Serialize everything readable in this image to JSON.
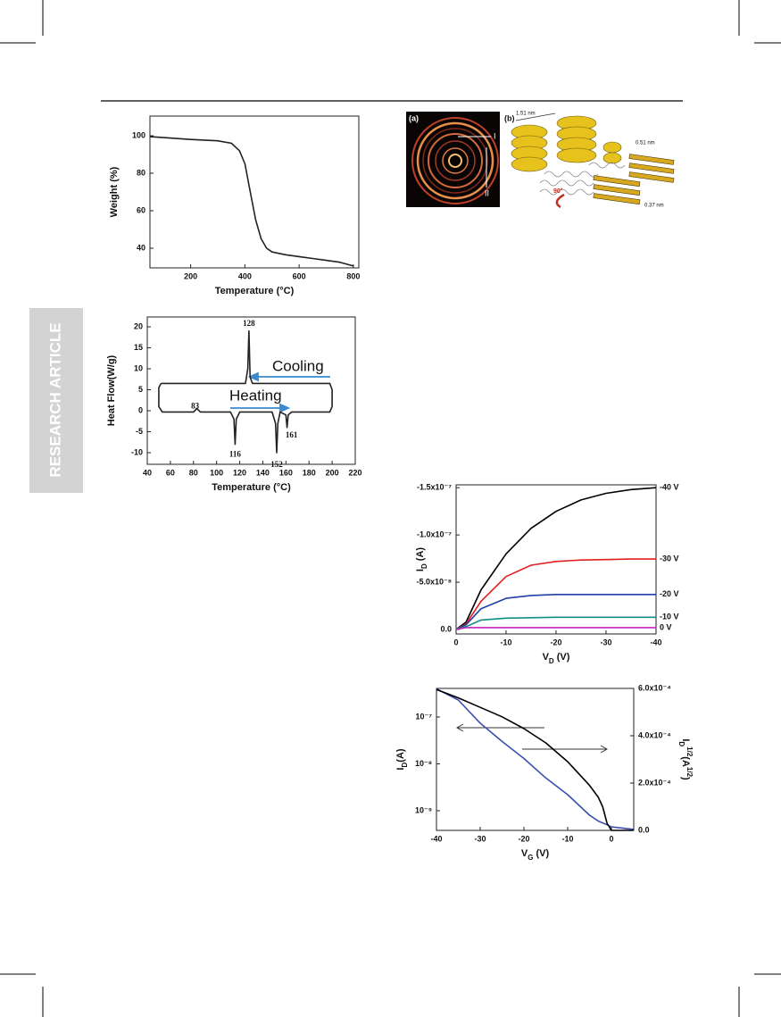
{
  "sidebar": "RESEARCH ARTICLE",
  "figure": {
    "panel_a": "(a)",
    "panel_b": "(b)",
    "ring_1": "I",
    "ring_2": "II",
    "spacing_1": "1.51 nm",
    "spacing_2": "0.51 nm",
    "spacing_3": "0.37 nm",
    "angle": "90°"
  },
  "chart_data": [
    {
      "type": "line",
      "x_label": [
        {
          "text": "Temperature (°C)"
        }
      ],
      "y_label": [
        {
          "text": "Weight (%)"
        }
      ],
      "xlim": [
        50,
        820
      ],
      "ylim": [
        29.5,
        110.5
      ],
      "xticks": [
        200,
        400,
        600,
        800
      ],
      "yticks": [
        40,
        60,
        80,
        100
      ],
      "x": [
        50,
        100,
        200,
        300,
        350,
        380,
        400,
        420,
        440,
        460,
        480,
        500,
        550,
        600,
        650,
        700,
        750,
        800
      ],
      "values": [
        99.5,
        99,
        98,
        97.3,
        96,
        92,
        85,
        70,
        55,
        45,
        40,
        38,
        36.5,
        35.5,
        34.5,
        33.5,
        32.5,
        30.5
      ],
      "color": "#222222"
    },
    {
      "type": "line",
      "x_label": [
        {
          "text": "Temperature (°C)"
        }
      ],
      "y_label": [
        {
          "text": "Heat Flow(W/g)"
        }
      ],
      "xlim": [
        40,
        220
      ],
      "ylim": [
        -12.77,
        22.34
      ],
      "xticks": [
        40,
        60,
        80,
        100,
        120,
        140,
        160,
        180,
        200,
        220
      ],
      "yticks": [
        -10,
        -5,
        0,
        5,
        10,
        15,
        20
      ],
      "x": [
        52,
        125,
        127,
        128,
        129,
        131,
        198,
        200,
        200,
        198,
        165,
        162,
        161,
        160,
        155,
        153,
        152,
        151,
        148,
        120,
        117,
        116,
        115,
        112,
        86,
        83,
        80,
        53,
        50,
        50,
        52
      ],
      "values": [
        6.5,
        6.5,
        10,
        19,
        8,
        6.5,
        6.5,
        5,
        1,
        -0.3,
        -0.3,
        -1,
        -4,
        -1,
        -0.3,
        -3,
        -10,
        -3,
        -0.3,
        -0.3,
        -2,
        -8,
        -2,
        -0.3,
        -0.3,
        0.5,
        -0.3,
        -0.3,
        1,
        5.5,
        6.5
      ],
      "color": "#222222",
      "annotations": [
        {
          "label": "128",
          "x": 128,
          "y": 19
        },
        {
          "label": "83",
          "x": 83,
          "y": 0.5
        },
        {
          "label": "116",
          "x": 116,
          "y": -8
        },
        {
          "label": "152",
          "x": 152,
          "y": -10
        },
        {
          "label": "161",
          "x": 161,
          "y": -4
        }
      ],
      "notes": [
        "Cooling",
        "Heating"
      ]
    },
    {
      "type": "line",
      "x_label": [
        {
          "text": "V"
        },
        {
          "text": "D",
          "shift": "sub"
        },
        {
          "text": " (V)"
        }
      ],
      "y_label": [
        {
          "text": "I"
        },
        {
          "text": "D",
          "shift": "sub"
        },
        {
          "text": " (A)"
        }
      ],
      "xlim": [
        0,
        -40
      ],
      "ylim": [
        4.7e-09,
        -1.53e-07
      ],
      "xticks": [
        0,
        -10,
        -20,
        -30,
        -40
      ],
      "yticks": [
        {
          "value": 0,
          "label": "0.0"
        },
        {
          "value": -5e-08,
          "label": "-5.0x10⁻⁸"
        },
        {
          "value": -1e-07,
          "label": "-1.0x10⁻⁷"
        },
        {
          "value": -1.5e-07,
          "label": "-1.5x10⁻⁷"
        }
      ],
      "x": [
        0,
        -2,
        -5,
        -10,
        -15,
        -20,
        -25,
        -30,
        -35,
        -40
      ],
      "series": [
        {
          "name": "-40 V",
          "color": "#000000",
          "values": [
            0,
            -8e-09,
            -4.2e-08,
            -8e-08,
            -1.07e-07,
            -1.25e-07,
            -1.37e-07,
            -1.44e-07,
            -1.48e-07,
            -1.5e-07
          ]
        },
        {
          "name": "-30 V",
          "color": "#e02020",
          "values": [
            0,
            -6e-09,
            -3e-08,
            -5.6e-08,
            -6.8e-08,
            -7.2e-08,
            -7.35e-08,
            -7.4e-08,
            -7.45e-08,
            -7.45e-08
          ]
        },
        {
          "name": "-20 V",
          "color": "#2040a8",
          "values": [
            0,
            -5e-09,
            -2.2e-08,
            -3.3e-08,
            -3.6e-08,
            -3.7e-08,
            -3.7e-08,
            -3.7e-08,
            -3.7e-08,
            -3.7e-08
          ]
        },
        {
          "name": "-10 V",
          "color": "#109080",
          "values": [
            0,
            -3e-09,
            -1e-08,
            -1.2e-08,
            -1.25e-08,
            -1.3e-08,
            -1.3e-08,
            -1.3e-08,
            -1.3e-08,
            -1.3e-08
          ]
        },
        {
          "name": "0 V",
          "color": "#c020c0",
          "values": [
            0,
            -2e-09,
            -2e-09,
            -2e-09,
            -2e-09,
            -2e-09,
            -2e-09,
            -2e-09,
            -2e-09,
            -2e-09
          ]
        }
      ]
    },
    {
      "type": "line",
      "ylog": true,
      "x_label": [
        {
          "text": "V"
        },
        {
          "text": "G",
          "shift": "sub"
        },
        {
          "text": " (V)"
        }
      ],
      "y_label": [
        {
          "text": "I"
        },
        {
          "text": "D",
          "shift": "sub"
        },
        {
          "text": "(A)"
        }
      ],
      "y2_label": [
        {
          "text": "I"
        },
        {
          "text": "D",
          "shift": "sub"
        },
        {
          "text": "1/2",
          "shift": "sup"
        },
        {
          "text": "(A"
        },
        {
          "text": "1/2",
          "shift": "sup"
        },
        {
          "text": ")"
        }
      ],
      "xlim": [
        -40,
        5.1
      ],
      "ylim": [
        3.8e-10,
        4.07e-07
      ],
      "y2lim": [
        0,
        0.0006
      ],
      "xticks": [
        -40,
        -30,
        -20,
        -10,
        0
      ],
      "yticks": [
        {
          "value": 1e-07,
          "label": "10⁻⁷"
        },
        {
          "value": 1e-08,
          "label": "10⁻⁸"
        },
        {
          "value": 1e-09,
          "label": "10⁻⁹"
        }
      ],
      "y2ticks": [
        {
          "value": 0,
          "label": "0.0"
        },
        {
          "value": 0.0002,
          "label": "2.0x10⁻⁴"
        },
        {
          "value": 0.0004,
          "label": "4.0x10⁻⁴"
        },
        {
          "value": 0.0006,
          "label": "6.0x10⁻⁴"
        }
      ],
      "x": [
        -40,
        -35,
        -30,
        -25,
        -20,
        -15,
        -10,
        -5,
        -3,
        -2,
        -1,
        0,
        5
      ],
      "series": [
        {
          "color": "#3a4fb0",
          "values": [
            4e-07,
            2.3e-07,
            7.4e-08,
            3e-08,
            1.3e-08,
            5e-09,
            2.2e-09,
            8e-10,
            6e-10,
            5.5e-10,
            5e-10,
            4.5e-10,
            4e-10
          ]
        },
        {
          "color": "#000000",
          "axis": "y2",
          "values": [
            0.000595,
            0.00056,
            0.00052,
            0.00048,
            0.00043,
            0.00037,
            0.00029,
            0.00019,
            0.00014,
            0.0001,
            3e-05,
            0,
            0
          ]
        }
      ]
    }
  ]
}
